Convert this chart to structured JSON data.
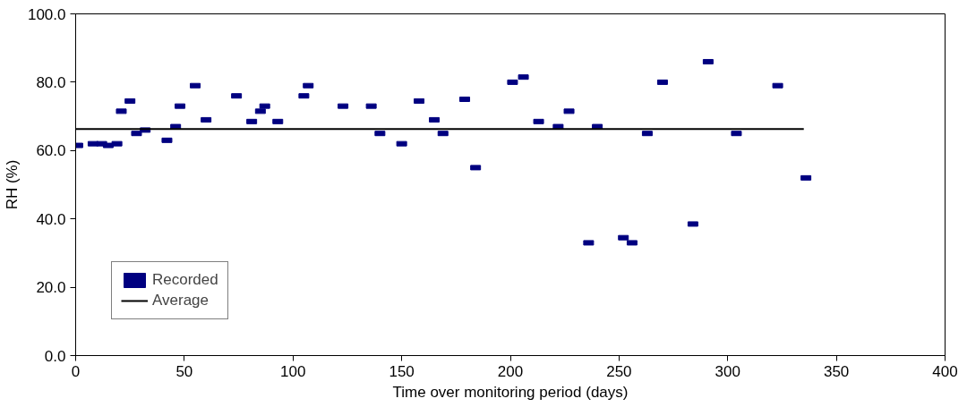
{
  "chart_data": {
    "type": "scatter",
    "xlabel": "Time over monitoring period (days)",
    "ylabel": "RH (%)",
    "xlim": [
      0,
      400
    ],
    "xticks": [
      0,
      50,
      100,
      150,
      200,
      250,
      300,
      350,
      400
    ],
    "ylim": [
      0,
      100
    ],
    "yticks": [
      {
        "value": 0,
        "label": "0.0"
      },
      {
        "value": 20,
        "label": "20.0"
      },
      {
        "value": 40,
        "label": "40.0"
      },
      {
        "value": 60,
        "label": "60.0"
      },
      {
        "value": 80,
        "label": "80.0"
      },
      {
        "value": 100,
        "label": "100.0"
      }
    ],
    "grid": false,
    "legend": "bottom left",
    "series": [
      {
        "name": "Recorded",
        "marker": "square",
        "color": "#000080",
        "x": [
          1,
          8,
          12,
          15,
          19,
          21,
          25,
          28,
          32,
          42,
          46,
          48,
          55,
          60,
          74,
          81,
          85,
          87,
          93,
          105,
          107,
          123,
          136,
          140,
          150,
          158,
          165,
          169,
          179,
          184,
          201,
          206,
          213,
          222,
          227,
          236,
          240,
          252,
          256,
          263,
          270,
          284,
          291,
          304,
          323,
          336
        ],
        "values": [
          61.5,
          62,
          62,
          61.5,
          62,
          71.5,
          74.5,
          65,
          66,
          63,
          67,
          73,
          79,
          69,
          76,
          68.5,
          71.5,
          73,
          68.5,
          76,
          79,
          73,
          73,
          65,
          62,
          74.5,
          69,
          65,
          75,
          55,
          80,
          81.5,
          68.5,
          67,
          71.5,
          33,
          67,
          34.5,
          33,
          65,
          80,
          38.5,
          86,
          65,
          79,
          52
        ]
      },
      {
        "name": "Average",
        "type": "line",
        "line_style": "solid",
        "color": "#000000",
        "x": [
          0,
          335
        ],
        "values": [
          66.3,
          66.3
        ]
      }
    ]
  }
}
